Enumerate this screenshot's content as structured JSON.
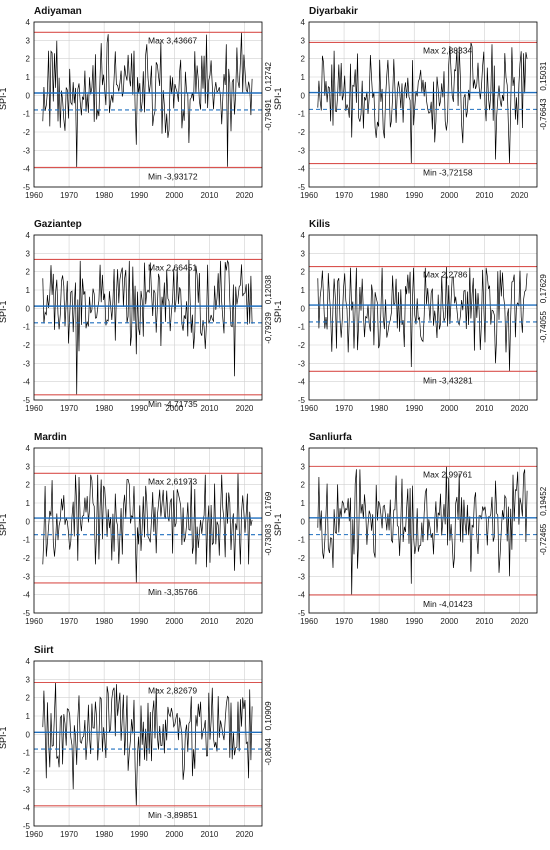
{
  "ylabel": "SPI-1",
  "chart_data": [
    {
      "type": "line",
      "title": "Adiyaman",
      "ylabel": "SPI-1",
      "xlim": [
        1960,
        2025
      ],
      "ylim": [
        -5,
        4
      ],
      "xticks": [
        "1960",
        "1970",
        "1980",
        "1990",
        "2000",
        "2010",
        "2020"
      ],
      "yticks": [
        "-5",
        "-4",
        "-3",
        "-2",
        "-1",
        "0",
        "1",
        "2",
        "3",
        "4"
      ],
      "grid": true,
      "series_style": "black monthly SPI-1 line",
      "max": 3.43667,
      "min": -3.93172,
      "threshold_upper": 0.12742,
      "threshold_lower": -0.79491,
      "max_label": "Max 3,43667",
      "min_label": "Min -3,93172",
      "upper_label": "0,12742",
      "lower_label": "-0,79491",
      "seed": 11,
      "extremes": [
        [
          1972,
          -3.93172
        ],
        [
          2019,
          3.43667
        ],
        [
          1989,
          -2.7
        ],
        [
          2004,
          -2.6
        ],
        [
          2015,
          -3.9
        ]
      ]
    },
    {
      "type": "line",
      "title": "Diyarbakir",
      "ylabel": "SPI-1",
      "xlim": [
        1960,
        2025
      ],
      "ylim": [
        -5,
        4
      ],
      "xticks": [
        "1960",
        "1970",
        "1980",
        "1990",
        "2000",
        "2010",
        "2020"
      ],
      "yticks": [
        "-5",
        "-4",
        "-3",
        "-2",
        "-1",
        "0",
        "1",
        "2",
        "3",
        "4"
      ],
      "grid": true,
      "series_style": "black monthly SPI-1 line",
      "max": 2.88334,
      "min": -3.72158,
      "threshold_upper": 0.15031,
      "threshold_lower": -0.76643,
      "max_label": "Max 2,88334",
      "min_label": "Min -3,72158",
      "upper_label": "0,15031",
      "lower_label": "-0,76643",
      "seed": 23,
      "extremes": [
        [
          1989,
          -3.72158
        ],
        [
          2006,
          2.88334
        ],
        [
          2017,
          -3.7
        ],
        [
          2013,
          -3.5
        ],
        [
          1972,
          -2.3
        ]
      ]
    },
    {
      "type": "line",
      "title": "Gaziantep",
      "ylabel": "SPI-1",
      "xlim": [
        1960,
        2025
      ],
      "ylim": [
        -5,
        4
      ],
      "xticks": [
        "1960",
        "1970",
        "1980",
        "1990",
        "2000",
        "2010",
        "2020"
      ],
      "yticks": [
        "-5",
        "-4",
        "-3",
        "-2",
        "-1",
        "0",
        "1",
        "2",
        "3",
        "4"
      ],
      "grid": true,
      "series_style": "black monthly SPI-1 line",
      "max": 2.66451,
      "min": -4.71735,
      "threshold_upper": 0.12038,
      "threshold_lower": -0.79239,
      "max_label": "Max 2,66451",
      "min_label": "Min -4,71735",
      "upper_label": "0,12038",
      "lower_label": "-0,79239",
      "seed": 37,
      "extremes": [
        [
          1972,
          -4.71735
        ],
        [
          2004,
          2.66451
        ],
        [
          2017,
          -3.7
        ],
        [
          1989,
          -2.5
        ]
      ]
    },
    {
      "type": "line",
      "title": "Kilis",
      "ylabel": "SPI-1",
      "xlim": [
        1960,
        2025
      ],
      "ylim": [
        -5,
        4
      ],
      "xticks": [
        "1960",
        "1970",
        "1980",
        "1990",
        "2000",
        "2010",
        "2020"
      ],
      "yticks": [
        "-5",
        "-4",
        "-3",
        "-2",
        "-1",
        "0",
        "1",
        "2",
        "3",
        "4"
      ],
      "grid": true,
      "series_style": "black monthly SPI-1 line",
      "max": 2.2786,
      "min": -3.43281,
      "threshold_upper": 0.17629,
      "threshold_lower": -0.74055,
      "max_label": "Max 2,2786",
      "min_label": "Min -3,43281",
      "upper_label": "0,17629",
      "lower_label": "-0,74055",
      "seed": 41,
      "extremes": [
        [
          2017,
          -3.43281
        ],
        [
          1999,
          2.2786
        ],
        [
          1989,
          -3.2
        ],
        [
          2013,
          -3.0
        ]
      ]
    },
    {
      "type": "line",
      "title": "Mardin",
      "ylabel": "SPI-1",
      "xlim": [
        1960,
        2025
      ],
      "ylim": [
        -5,
        4
      ],
      "xticks": [
        "1960",
        "1970",
        "1980",
        "1990",
        "2000",
        "2010",
        "2020"
      ],
      "yticks": [
        "-5",
        "-4",
        "-3",
        "-2",
        "-1",
        "0",
        "1",
        "2",
        "3",
        "4"
      ],
      "grid": true,
      "series_style": "black monthly SPI-1 line",
      "max": 2.61973,
      "min": -3.35766,
      "threshold_upper": 0.1769,
      "threshold_lower": -0.73083,
      "max_label": "Max 2,61973",
      "min_label": "Min -3,35766",
      "upper_label": "0,1769",
      "lower_label": "-0,73083",
      "seed": 53,
      "extremes": [
        [
          1989,
          -3.35766
        ],
        [
          2018,
          2.61973
        ],
        [
          2017,
          -2.7
        ],
        [
          2009,
          -2.5
        ]
      ]
    },
    {
      "type": "line",
      "title": "Sanliurfa",
      "ylabel": "SPI-1",
      "xlim": [
        1960,
        2025
      ],
      "ylim": [
        -5,
        4
      ],
      "xticks": [
        "1960",
        "1970",
        "1980",
        "1990",
        "2000",
        "2010",
        "2020"
      ],
      "yticks": [
        "-5",
        "-4",
        "-3",
        "-2",
        "-1",
        "0",
        "1",
        "2",
        "3",
        "4"
      ],
      "grid": true,
      "series_style": "black monthly SPI-1 line",
      "max": 2.99761,
      "min": -4.01423,
      "threshold_upper": 0.19452,
      "threshold_lower": -0.72465,
      "max_label": "Max 2,99761",
      "min_label": "Min -4,01423",
      "upper_label": "0,19452",
      "lower_label": "-0,72465",
      "seed": 67,
      "extremes": [
        [
          1972,
          -4.01423
        ],
        [
          1999,
          2.99761
        ],
        [
          1989,
          -3.4
        ],
        [
          2017,
          -3.0
        ]
      ]
    },
    {
      "type": "line",
      "title": "Siirt",
      "ylabel": "SPI-1",
      "xlim": [
        1960,
        2025
      ],
      "ylim": [
        -5,
        4
      ],
      "xticks": [
        "1960",
        "1970",
        "1980",
        "1990",
        "2000",
        "2010",
        "2020"
      ],
      "yticks": [
        "-5",
        "-4",
        "-3",
        "-2",
        "-1",
        "0",
        "1",
        "2",
        "3",
        "4"
      ],
      "grid": true,
      "series_style": "black monthly SPI-1 line",
      "max": 2.82679,
      "min": -3.89851,
      "threshold_upper": 0.10909,
      "threshold_lower": -0.8044,
      "max_label": "Max 2,82679",
      "min_label": "Min -3,89851",
      "upper_label": "0,10909",
      "lower_label": "-0,8044",
      "seed": 79,
      "extremes": [
        [
          1989,
          -3.89851
        ],
        [
          1966,
          2.82679
        ],
        [
          1971,
          -3.0
        ],
        [
          2021,
          -2.4
        ]
      ]
    }
  ],
  "colors": {
    "series": "#000000",
    "maxmin_line": "#d9534f",
    "mean_line": "#1f6fbf",
    "grid": "#d0d0d0",
    "axis": "#000000"
  }
}
